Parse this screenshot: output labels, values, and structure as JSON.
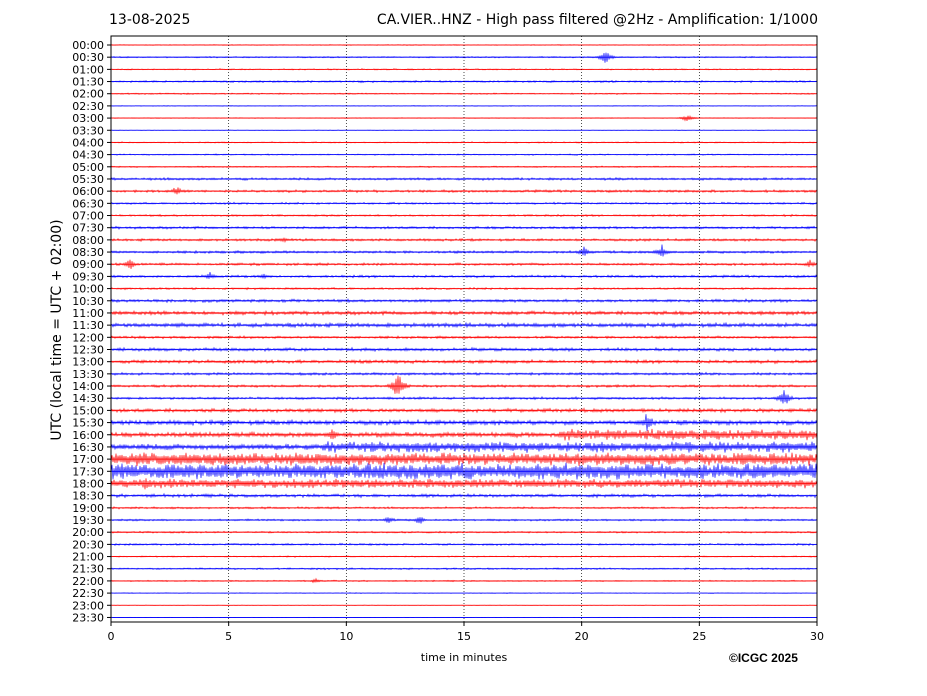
{
  "header": {
    "date": "13-08-2025",
    "title": "CA.VIER..HNZ - High pass filtered @2Hz - Amplification: 1/1000"
  },
  "footer": {
    "copyright": "©ICGC 2025"
  },
  "colors": {
    "trace_a": "#ff0000",
    "trace_b": "#0000ff",
    "grid": "#000000"
  },
  "chart_data": {
    "type": "line",
    "chart_kind": "helicorder",
    "title": "CA.VIER..HNZ - High pass filtered @2Hz - Amplification: 1/1000",
    "xlabel": "time in minutes",
    "ylabel": "UTC (local time = UTC + 02:00)",
    "xlim": [
      0,
      30
    ],
    "x_ticks": [
      0,
      5,
      10,
      15,
      20,
      25,
      30
    ],
    "x_vertical_grid": [
      5,
      10,
      15,
      20,
      25
    ],
    "grid": "vertical dotted",
    "trace_colors_alternate": [
      "red",
      "blue"
    ],
    "rows": [
      "00:00",
      "00:30",
      "01:00",
      "01:30",
      "02:00",
      "02:30",
      "03:00",
      "03:30",
      "04:00",
      "04:30",
      "05:00",
      "05:30",
      "06:00",
      "06:30",
      "07:00",
      "07:30",
      "08:00",
      "08:30",
      "09:00",
      "09:30",
      "10:00",
      "10:30",
      "11:00",
      "11:30",
      "12:00",
      "12:30",
      "13:00",
      "13:30",
      "14:00",
      "14:30",
      "15:00",
      "15:30",
      "16:00",
      "16:30",
      "17:00",
      "17:30",
      "18:00",
      "18:30",
      "19:00",
      "19:30",
      "20:00",
      "20:30",
      "21:00",
      "21:30",
      "22:00",
      "22:30",
      "23:00",
      "23:30"
    ],
    "noise_level": [
      0.6,
      0.8,
      0.8,
      1.2,
      0.8,
      0.5,
      0.5,
      0.3,
      0.8,
      0.8,
      0.8,
      1.5,
      1.5,
      1.2,
      1.2,
      1.5,
      1.5,
      1.5,
      1.5,
      1.5,
      1.2,
      1.8,
      2.2,
      2.5,
      1.5,
      2,
      2,
      1.5,
      1.5,
      1.5,
      2.2,
      2.8,
      3,
      3.5,
      4,
      5,
      3.5,
      2,
      1.2,
      1.2,
      1,
      1.2,
      0.8,
      1,
      0.8,
      0.5,
      0.3,
      0.3
    ],
    "bursts": [
      {
        "row": "16:00",
        "start": 19,
        "end": 30,
        "amplitude": 6
      },
      {
        "row": "16:30",
        "start": 9,
        "end": 30,
        "amplitude": 6
      },
      {
        "row": "17:00",
        "start": 0,
        "end": 30,
        "amplitude": 7
      },
      {
        "row": "17:30",
        "start": 0,
        "end": 30,
        "amplitude": 9
      },
      {
        "row": "18:00",
        "start": 0,
        "end": 30,
        "amplitude": 5
      }
    ],
    "events": [
      {
        "row": "00:30",
        "x": 21.0,
        "amplitude": 9
      },
      {
        "row": "03:00",
        "x": 24.5,
        "amplitude": 5
      },
      {
        "row": "06:00",
        "x": 2.8,
        "amplitude": 6
      },
      {
        "row": "08:00",
        "x": 7.3,
        "amplitude": 4
      },
      {
        "row": "08:30",
        "x": 20.1,
        "amplitude": 8
      },
      {
        "row": "08:30",
        "x": 23.4,
        "amplitude": 9
      },
      {
        "row": "09:00",
        "x": 0.8,
        "amplitude": 7
      },
      {
        "row": "09:00",
        "x": 29.7,
        "amplitude": 5
      },
      {
        "row": "09:30",
        "x": 4.2,
        "amplitude": 5
      },
      {
        "row": "09:30",
        "x": 6.5,
        "amplitude": 4
      },
      {
        "row": "14:00",
        "x": 12.2,
        "amplitude": 18
      },
      {
        "row": "14:30",
        "x": 28.6,
        "amplitude": 12
      },
      {
        "row": "15:30",
        "x": 22.8,
        "amplitude": 12
      },
      {
        "row": "16:00",
        "x": 9.4,
        "amplitude": 10
      },
      {
        "row": "18:00",
        "x": 1.5,
        "amplitude": 10
      },
      {
        "row": "19:30",
        "x": 11.8,
        "amplitude": 5
      },
      {
        "row": "19:30",
        "x": 13.1,
        "amplitude": 6
      },
      {
        "row": "22:00",
        "x": 8.7,
        "amplitude": 3
      }
    ]
  }
}
